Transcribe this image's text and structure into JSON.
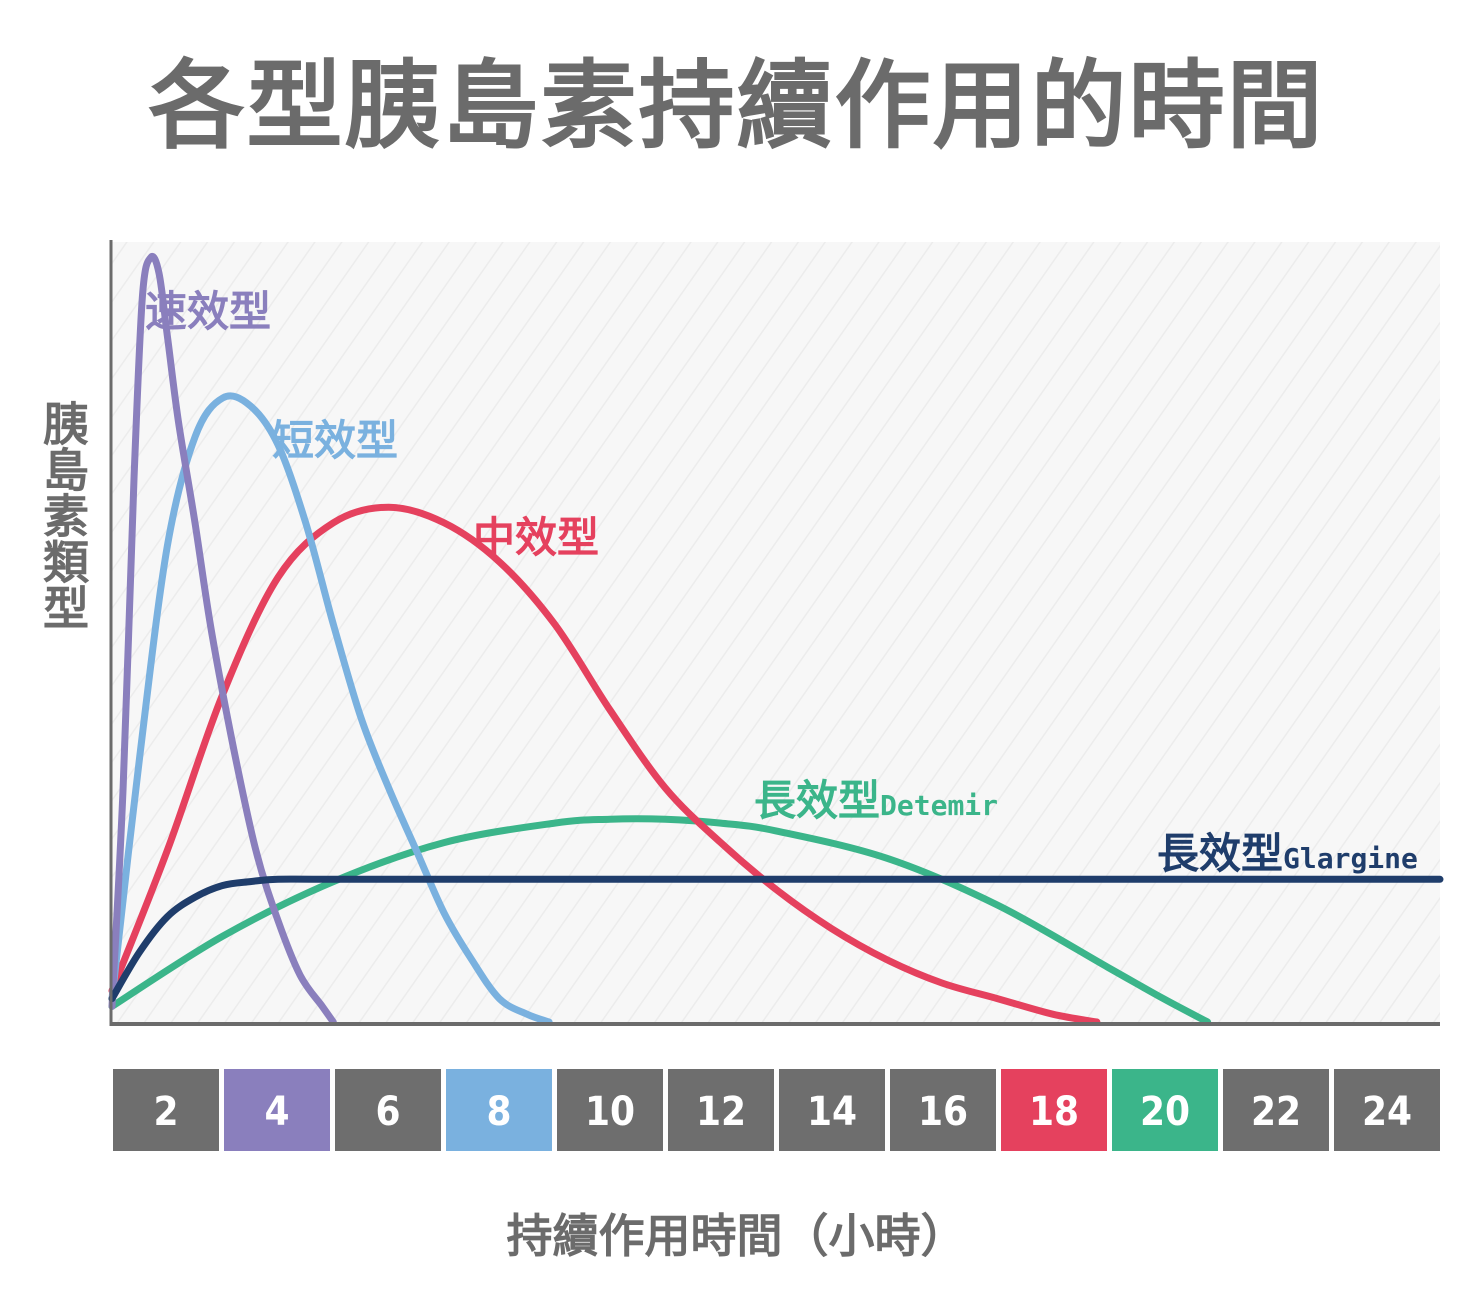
{
  "title": "各型胰島素持續作用的時間",
  "chart_data": {
    "type": "line",
    "title": "各型胰島素持續作用的時間",
    "xlabel": "持續作用時間（小時）",
    "ylabel": "胰島素類型",
    "x_ticks": [
      2,
      4,
      6,
      8,
      10,
      12,
      14,
      16,
      18,
      20,
      22,
      24
    ],
    "x_tick_colors": [
      "#6e6e6e",
      "#8a7fbd",
      "#6e6e6e",
      "#7ab1df",
      "#6e6e6e",
      "#6e6e6e",
      "#6e6e6e",
      "#6e6e6e",
      "#e5415e",
      "#3bb58a",
      "#6e6e6e",
      "#6e6e6e"
    ],
    "xlim": [
      0,
      24
    ],
    "ylim": [
      0,
      100
    ],
    "grid": false,
    "series": [
      {
        "name": "速效型",
        "sub": "",
        "color": "#8a7fbd",
        "x": [
          0,
          0.2,
          0.4,
          0.55,
          0.7,
          0.85,
          1.0,
          1.2,
          1.5,
          1.8,
          2.2,
          2.6,
          3.0,
          3.4,
          3.8,
          4.0
        ],
        "y": [
          2,
          30,
          70,
          93,
          98,
          96,
          88,
          77,
          64,
          50,
          35,
          22,
          13,
          6,
          2,
          0
        ]
      },
      {
        "name": "短效型",
        "sub": "",
        "color": "#7ab1df",
        "x": [
          0,
          0.5,
          1.0,
          1.5,
          2.0,
          2.5,
          3.0,
          3.5,
          4.0,
          4.5,
          5.0,
          5.5,
          6.0,
          6.5,
          7.0,
          7.5,
          7.9
        ],
        "y": [
          3,
          34,
          61,
          75,
          80,
          79,
          74,
          64,
          51,
          39,
          30,
          22,
          14,
          8,
          3,
          1,
          0
        ]
      },
      {
        "name": "中效型",
        "sub": "",
        "color": "#e5415e",
        "x": [
          0,
          1,
          2,
          3,
          4,
          5,
          6,
          7,
          8,
          9,
          10,
          11,
          12,
          13,
          14,
          15,
          16,
          17,
          17.8
        ],
        "y": [
          4,
          22,
          42,
          57,
          64,
          66,
          64,
          59,
          51,
          40,
          30,
          23,
          17,
          12,
          8,
          5,
          3,
          1,
          0
        ]
      },
      {
        "name": "長效型",
        "sub": "Detemir",
        "color": "#3bb58a",
        "x": [
          0,
          2,
          4,
          6,
          8,
          9,
          10,
          11,
          12,
          14,
          16,
          18,
          19,
          19.8
        ],
        "y": [
          2,
          11,
          18,
          23,
          25.5,
          26,
          26,
          25.5,
          24.5,
          21,
          15,
          7,
          3,
          0
        ]
      },
      {
        "name": "長效型",
        "sub": "Glargine",
        "color": "#1f3d6b",
        "x": [
          0,
          0.5,
          1,
          1.5,
          2,
          2.5,
          3,
          4,
          8,
          12,
          16,
          20,
          24
        ],
        "y": [
          3,
          9,
          13.5,
          16,
          17.5,
          18,
          18.3,
          18.3,
          18.3,
          18.3,
          18.3,
          18.3,
          18.3
        ]
      }
    ]
  }
}
